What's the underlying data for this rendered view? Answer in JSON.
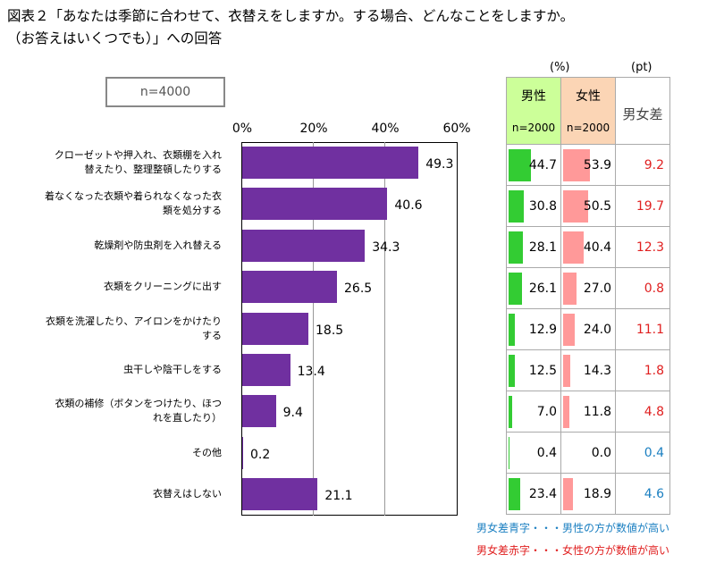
{
  "title": {
    "line1": "図表２「あなたは季節に合わせて、衣替えをしますか。する場合、どんなことをしますか。",
    "line2": "（お答えはいくつでも）」への回答"
  },
  "sample_label": "n=4000",
  "units": {
    "percent": "(%)",
    "pt": "(pt)"
  },
  "table": {
    "male_header": "男性",
    "female_header": "女性",
    "male_n": "n=2000",
    "female_n": "n=2000",
    "diff_header": "男女差"
  },
  "notes": {
    "blue": "男女差青字・・・男性の方が数値が高い",
    "red": "男女差赤字・・・女性の方が数値が高い"
  },
  "colors": {
    "bar": "#7030a0",
    "male": "#33cc33",
    "female": "#ff9999",
    "red": "#e02020",
    "blue": "#1a7fc1"
  },
  "chart_data": {
    "type": "bar",
    "orientation": "horizontal",
    "xlim": [
      0,
      60
    ],
    "x_ticks": [
      "0%",
      "20%",
      "40%",
      "60%"
    ],
    "categories": [
      [
        "クローゼットや押入れ、衣類棚を入れ",
        "替えたり、整理整頓したりする"
      ],
      [
        "着なくなった衣類や着られなくなった衣",
        "類を処分する"
      ],
      [
        "乾燥剤や防虫剤を入れ替える"
      ],
      [
        "衣類をクリーニングに出す"
      ],
      [
        "衣類を洗濯したり、アイロンをかけたり",
        "する"
      ],
      [
        "虫干しや陰干しをする"
      ],
      [
        "衣類の補修（ボタンをつけたり、ほつ",
        "れを直したり）"
      ],
      [
        "その他"
      ],
      [
        "衣替えはしない"
      ]
    ],
    "values": [
      49.3,
      40.6,
      34.3,
      26.5,
      18.5,
      13.4,
      9.4,
      0.2,
      21.1
    ],
    "male": [
      44.7,
      30.8,
      28.1,
      26.1,
      12.9,
      12.5,
      7.0,
      0.4,
      23.4
    ],
    "female": [
      53.9,
      50.5,
      40.4,
      27.0,
      24.0,
      14.3,
      11.8,
      0.0,
      18.9
    ],
    "diff": [
      9.2,
      19.7,
      12.3,
      0.8,
      11.1,
      1.8,
      4.8,
      0.4,
      4.6
    ],
    "diff_color": [
      "red",
      "red",
      "red",
      "red",
      "red",
      "red",
      "red",
      "blue",
      "blue"
    ]
  }
}
